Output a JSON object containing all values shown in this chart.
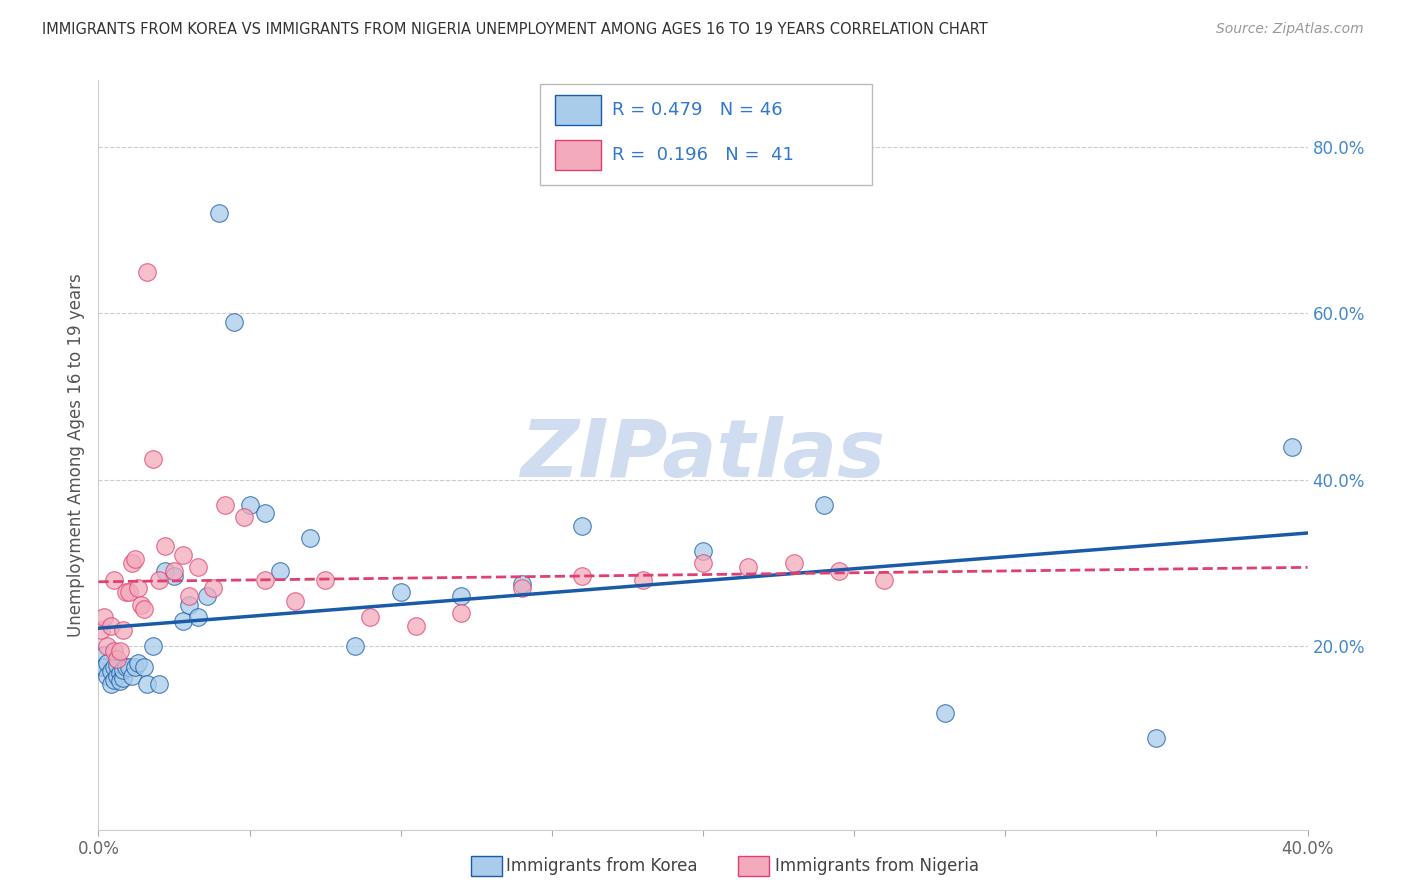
{
  "title": "IMMIGRANTS FROM KOREA VS IMMIGRANTS FROM NIGERIA UNEMPLOYMENT AMONG AGES 16 TO 19 YEARS CORRELATION CHART",
  "source": "Source: ZipAtlas.com",
  "ylabel": "Unemployment Among Ages 16 to 19 years",
  "xlim": [
    0.0,
    0.4
  ],
  "ylim": [
    -0.02,
    0.88
  ],
  "yticks_right": [
    0.2,
    0.4,
    0.6,
    0.8
  ],
  "ytick_labels_right": [
    "20.0%",
    "40.0%",
    "60.0%",
    "80.0%"
  ],
  "korea_R": 0.479,
  "korea_N": 46,
  "nigeria_R": 0.196,
  "nigeria_N": 41,
  "korea_color": "#A8CCEA",
  "nigeria_color": "#F2AABC",
  "korea_line_color": "#1A5BA8",
  "nigeria_line_color": "#E04070",
  "watermark": "ZIPatlas",
  "watermark_color": "#C8D8F0",
  "legend_korea": "Immigrants from Korea",
  "legend_nigeria": "Immigrants from Nigeria",
  "korea_x": [
    0.001,
    0.002,
    0.002,
    0.003,
    0.003,
    0.004,
    0.004,
    0.005,
    0.005,
    0.006,
    0.006,
    0.007,
    0.007,
    0.008,
    0.008,
    0.009,
    0.01,
    0.011,
    0.012,
    0.013,
    0.015,
    0.016,
    0.018,
    0.02,
    0.022,
    0.025,
    0.028,
    0.03,
    0.033,
    0.036,
    0.04,
    0.045,
    0.05,
    0.055,
    0.06,
    0.07,
    0.085,
    0.1,
    0.12,
    0.14,
    0.16,
    0.2,
    0.24,
    0.28,
    0.35,
    0.395
  ],
  "korea_y": [
    0.175,
    0.19,
    0.175,
    0.18,
    0.165,
    0.17,
    0.155,
    0.16,
    0.175,
    0.165,
    0.178,
    0.168,
    0.158,
    0.162,
    0.172,
    0.175,
    0.175,
    0.165,
    0.175,
    0.18,
    0.175,
    0.155,
    0.2,
    0.155,
    0.29,
    0.285,
    0.23,
    0.25,
    0.235,
    0.26,
    0.72,
    0.59,
    0.37,
    0.36,
    0.29,
    0.33,
    0.2,
    0.265,
    0.26,
    0.275,
    0.345,
    0.315,
    0.37,
    0.12,
    0.09,
    0.44
  ],
  "nigeria_x": [
    0.001,
    0.002,
    0.003,
    0.004,
    0.005,
    0.005,
    0.006,
    0.007,
    0.008,
    0.009,
    0.01,
    0.011,
    0.012,
    0.013,
    0.014,
    0.015,
    0.016,
    0.018,
    0.02,
    0.022,
    0.025,
    0.028,
    0.03,
    0.033,
    0.038,
    0.042,
    0.048,
    0.055,
    0.065,
    0.075,
    0.09,
    0.105,
    0.12,
    0.14,
    0.16,
    0.18,
    0.2,
    0.215,
    0.23,
    0.245,
    0.26
  ],
  "nigeria_y": [
    0.22,
    0.235,
    0.2,
    0.225,
    0.195,
    0.28,
    0.185,
    0.195,
    0.22,
    0.265,
    0.265,
    0.3,
    0.305,
    0.27,
    0.25,
    0.245,
    0.65,
    0.425,
    0.28,
    0.32,
    0.29,
    0.31,
    0.26,
    0.295,
    0.27,
    0.37,
    0.355,
    0.28,
    0.255,
    0.28,
    0.235,
    0.225,
    0.24,
    0.27,
    0.285,
    0.28,
    0.3,
    0.295,
    0.3,
    0.29,
    0.28
  ]
}
